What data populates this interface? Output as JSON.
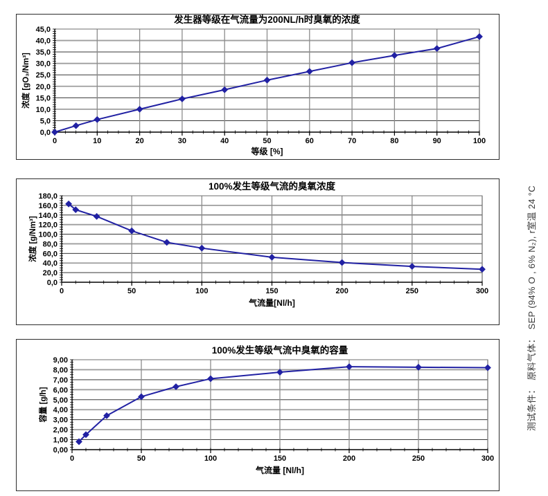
{
  "page": {
    "background": "#ffffff"
  },
  "side_note": {
    "text": "测试条件：　原料气体：　SEP (94% O , 6% N₂), r室温 24 °C"
  },
  "chart_data": [
    {
      "type": "line",
      "title": "发生器等级在气流量为200NL/h时臭氧的浓度",
      "xlabel": "等级 [%]",
      "ylabel": "浓度 [gO₃/Nm³]",
      "x": [
        0,
        5,
        10,
        20,
        30,
        40,
        50,
        60,
        70,
        80,
        90,
        100
      ],
      "y": [
        0.0,
        2.8,
        5.5,
        10.0,
        14.5,
        18.5,
        22.7,
        26.5,
        30.3,
        33.5,
        36.5,
        41.7
      ],
      "xlim": [
        0,
        100
      ],
      "ylim": [
        0,
        45
      ],
      "x_ticks": [
        0,
        10,
        20,
        30,
        40,
        50,
        60,
        70,
        80,
        90,
        100
      ],
      "y_ticks": [
        0,
        5,
        10,
        15,
        20,
        25,
        30,
        35,
        40,
        45
      ],
      "y_tick_labels": [
        "0,0",
        "5,0",
        "10,0",
        "15,0",
        "20,0",
        "25,0",
        "30,0",
        "35,0",
        "40,0",
        "45,0"
      ],
      "minor_x_step": 2.5,
      "minor_y_step": 1,
      "line_color": "#2121a3",
      "grid": true,
      "legend": "none"
    },
    {
      "type": "line",
      "title": "100%发生等级气流的臭氧浓度",
      "xlabel": "气流量[Nl/h]",
      "ylabel": "浓度 [g/Nm³]",
      "x": [
        5,
        10,
        25,
        50,
        75,
        100,
        150,
        200,
        250,
        300
      ],
      "y": [
        163,
        151,
        137,
        107,
        83,
        71,
        52,
        41,
        33,
        27
      ],
      "xlim": [
        0,
        300
      ],
      "ylim": [
        0,
        180
      ],
      "x_ticks": [
        0,
        50,
        100,
        150,
        200,
        250,
        300
      ],
      "y_ticks": [
        0,
        20,
        40,
        60,
        80,
        100,
        120,
        140,
        160,
        180
      ],
      "y_tick_labels": [
        "0,0",
        "20,0",
        "40,0",
        "60,0",
        "80,0",
        "100,0",
        "120,0",
        "140,0",
        "160,0",
        "180,0"
      ],
      "minor_x_step": 10,
      "minor_y_step": 5,
      "line_color": "#2121a3",
      "grid": true,
      "legend": "none"
    },
    {
      "type": "line",
      "title": "100%发生等级气流中臭氧的容量",
      "xlabel": "气流量 [Nl/h]",
      "ylabel": "容量 [g/h]",
      "x": [
        5,
        10,
        25,
        50,
        75,
        100,
        150,
        200,
        250,
        300
      ],
      "y": [
        0.8,
        1.5,
        3.4,
        5.3,
        6.3,
        7.1,
        7.75,
        8.3,
        8.25,
        8.2
      ],
      "xlim": [
        0,
        300
      ],
      "ylim": [
        0,
        9
      ],
      "x_ticks": [
        0,
        50,
        100,
        150,
        200,
        250,
        300
      ],
      "y_ticks": [
        0,
        1,
        2,
        3,
        4,
        5,
        6,
        7,
        8,
        9
      ],
      "y_tick_labels": [
        "0,00",
        "1,00",
        "2,00",
        "3,00",
        "4,00",
        "5,00",
        "6,00",
        "7,00",
        "8,00",
        "9,00"
      ],
      "minor_x_step": 10,
      "minor_y_step": 0.25,
      "line_color": "#2121a3",
      "grid": true,
      "legend": "none"
    }
  ]
}
